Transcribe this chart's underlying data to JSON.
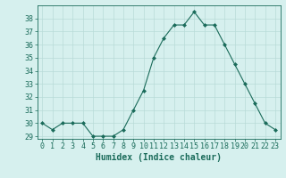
{
  "x": [
    0,
    1,
    2,
    3,
    4,
    5,
    6,
    7,
    8,
    9,
    10,
    11,
    12,
    13,
    14,
    15,
    16,
    17,
    18,
    19,
    20,
    21,
    22,
    23
  ],
  "y": [
    30,
    29.5,
    30,
    30,
    30,
    29,
    29,
    29,
    29.5,
    31,
    32.5,
    35,
    36.5,
    37.5,
    37.5,
    38.5,
    37.5,
    37.5,
    36,
    34.5,
    33,
    31.5,
    30,
    29.5
  ],
  "line_color": "#1a6b5a",
  "marker_color": "#1a6b5a",
  "bg_color": "#d6f0ee",
  "grid_color": "#b8dbd8",
  "xlabel": "Humidex (Indice chaleur)",
  "ylim": [
    28.8,
    39
  ],
  "xlim": [
    -0.5,
    23.5
  ],
  "yticks": [
    29,
    30,
    31,
    32,
    33,
    34,
    35,
    36,
    37,
    38
  ],
  "xticks": [
    0,
    1,
    2,
    3,
    4,
    5,
    6,
    7,
    8,
    9,
    10,
    11,
    12,
    13,
    14,
    15,
    16,
    17,
    18,
    19,
    20,
    21,
    22,
    23
  ],
  "font_color": "#1a6b5a",
  "tick_fontsize": 6,
  "label_fontsize": 7
}
